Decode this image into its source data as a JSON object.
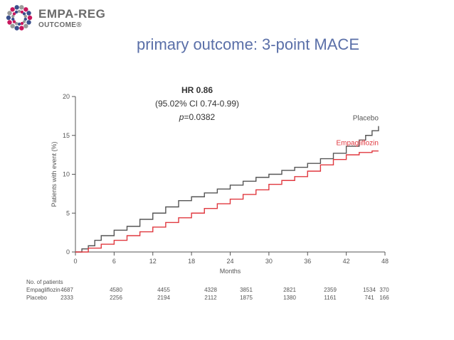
{
  "logo": {
    "line1": "EMPA-REG",
    "line2": "OUTCOME®",
    "icon": "dotted-ring-logo",
    "colors": [
      "#c8175d",
      "#3a4f8c",
      "#9a9a9a"
    ]
  },
  "title": "primary outcome: 3-point MACE",
  "hr": {
    "label": "HR 0.86",
    "ci": "(95.02% CI 0.74-0.99)",
    "p_prefix": "p",
    "p_value": "=0.0382"
  },
  "chart_data": {
    "type": "line",
    "xlabel": "Months",
    "ylabel": "Patients with event (%)",
    "xlim": [
      0,
      48
    ],
    "ylim": [
      0,
      20
    ],
    "x_ticks": [
      "0",
      "6",
      "12",
      "18",
      "24",
      "30",
      "36",
      "42",
      "48"
    ],
    "y_ticks": [
      "0",
      "5",
      "10",
      "15",
      "20"
    ],
    "grid": false,
    "series": [
      {
        "name": "Placebo",
        "color": "#555555",
        "x": [
          0,
          1,
          2,
          3,
          4,
          6,
          8,
          10,
          12,
          14,
          16,
          18,
          20,
          22,
          24,
          26,
          28,
          30,
          32,
          34,
          36,
          38,
          40,
          42,
          44,
          45,
          46,
          47
        ],
        "y": [
          0,
          0.4,
          0.8,
          1.5,
          2.1,
          2.8,
          3.3,
          4.2,
          5.0,
          5.8,
          6.6,
          7.1,
          7.6,
          8.1,
          8.6,
          9.1,
          9.6,
          10.0,
          10.5,
          10.9,
          11.4,
          12.0,
          12.7,
          13.6,
          14.4,
          15.0,
          15.6,
          16.2
        ]
      },
      {
        "name": "Empagliflozin",
        "color": "#e0383f",
        "x": [
          0,
          2,
          4,
          6,
          8,
          10,
          12,
          14,
          16,
          18,
          20,
          22,
          24,
          26,
          28,
          30,
          32,
          34,
          36,
          38,
          40,
          42,
          44,
          46,
          47
        ],
        "y": [
          0,
          0.5,
          1.0,
          1.5,
          2.1,
          2.6,
          3.2,
          3.8,
          4.4,
          5.0,
          5.6,
          6.2,
          6.8,
          7.4,
          8.0,
          8.7,
          9.2,
          9.7,
          10.4,
          11.2,
          11.9,
          12.5,
          12.8,
          13.0,
          13.0
        ]
      }
    ]
  },
  "risk_table": {
    "title": "No. of patients",
    "rows": [
      {
        "label": "Empagliflozin",
        "values": [
          "4687",
          "4580",
          "4455",
          "4328",
          "3851",
          "2821",
          "2359",
          "1534",
          "370"
        ]
      },
      {
        "label": "Placebo",
        "values": [
          "2333",
          "2256",
          "2194",
          "2112",
          "1875",
          "1380",
          "1161",
          "741",
          "166"
        ]
      }
    ]
  }
}
